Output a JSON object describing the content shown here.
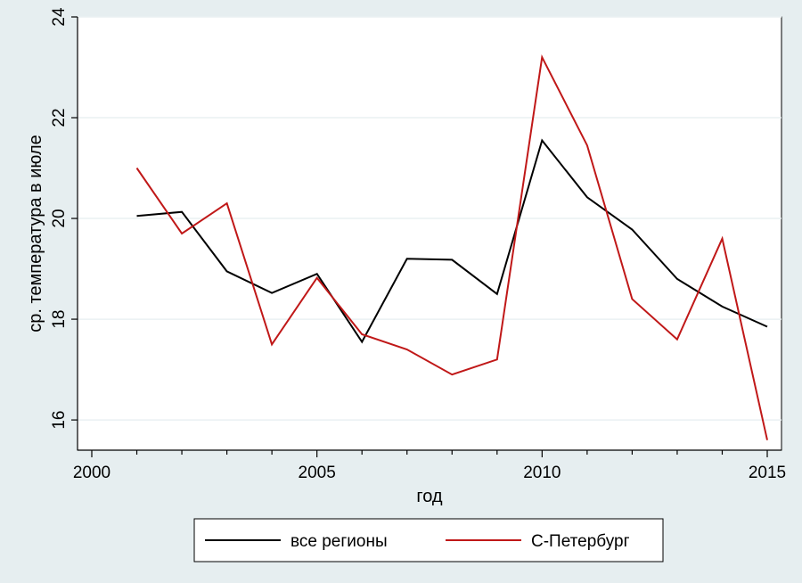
{
  "chart_data": {
    "type": "line",
    "title": "",
    "xlabel": "год",
    "ylabel": "ср. температура в июле",
    "xlim": [
      2000,
      2015
    ],
    "ylim": [
      15.4,
      24
    ],
    "x_ticks": [
      "2000",
      "2005",
      "2010",
      "2015"
    ],
    "y_ticks": [
      "16",
      "18",
      "20",
      "22",
      "24"
    ],
    "grid": true,
    "legend_position": "bottom",
    "x": [
      2001,
      2002,
      2003,
      2004,
      2005,
      2006,
      2007,
      2008,
      2009,
      2010,
      2011,
      2012,
      2013,
      2014,
      2015
    ],
    "series": [
      {
        "name": "все регионы",
        "color": "#000000",
        "values": [
          20.05,
          20.13,
          18.95,
          18.52,
          18.9,
          17.55,
          19.2,
          19.18,
          18.5,
          21.55,
          20.42,
          19.78,
          18.8,
          18.25,
          17.85
        ]
      },
      {
        "name": "С-Петербург",
        "color": "#c01818",
        "values": [
          21.0,
          19.7,
          20.3,
          17.5,
          18.82,
          17.7,
          17.4,
          16.9,
          17.2,
          23.2,
          21.45,
          18.4,
          17.6,
          19.6,
          15.6
        ]
      }
    ]
  }
}
